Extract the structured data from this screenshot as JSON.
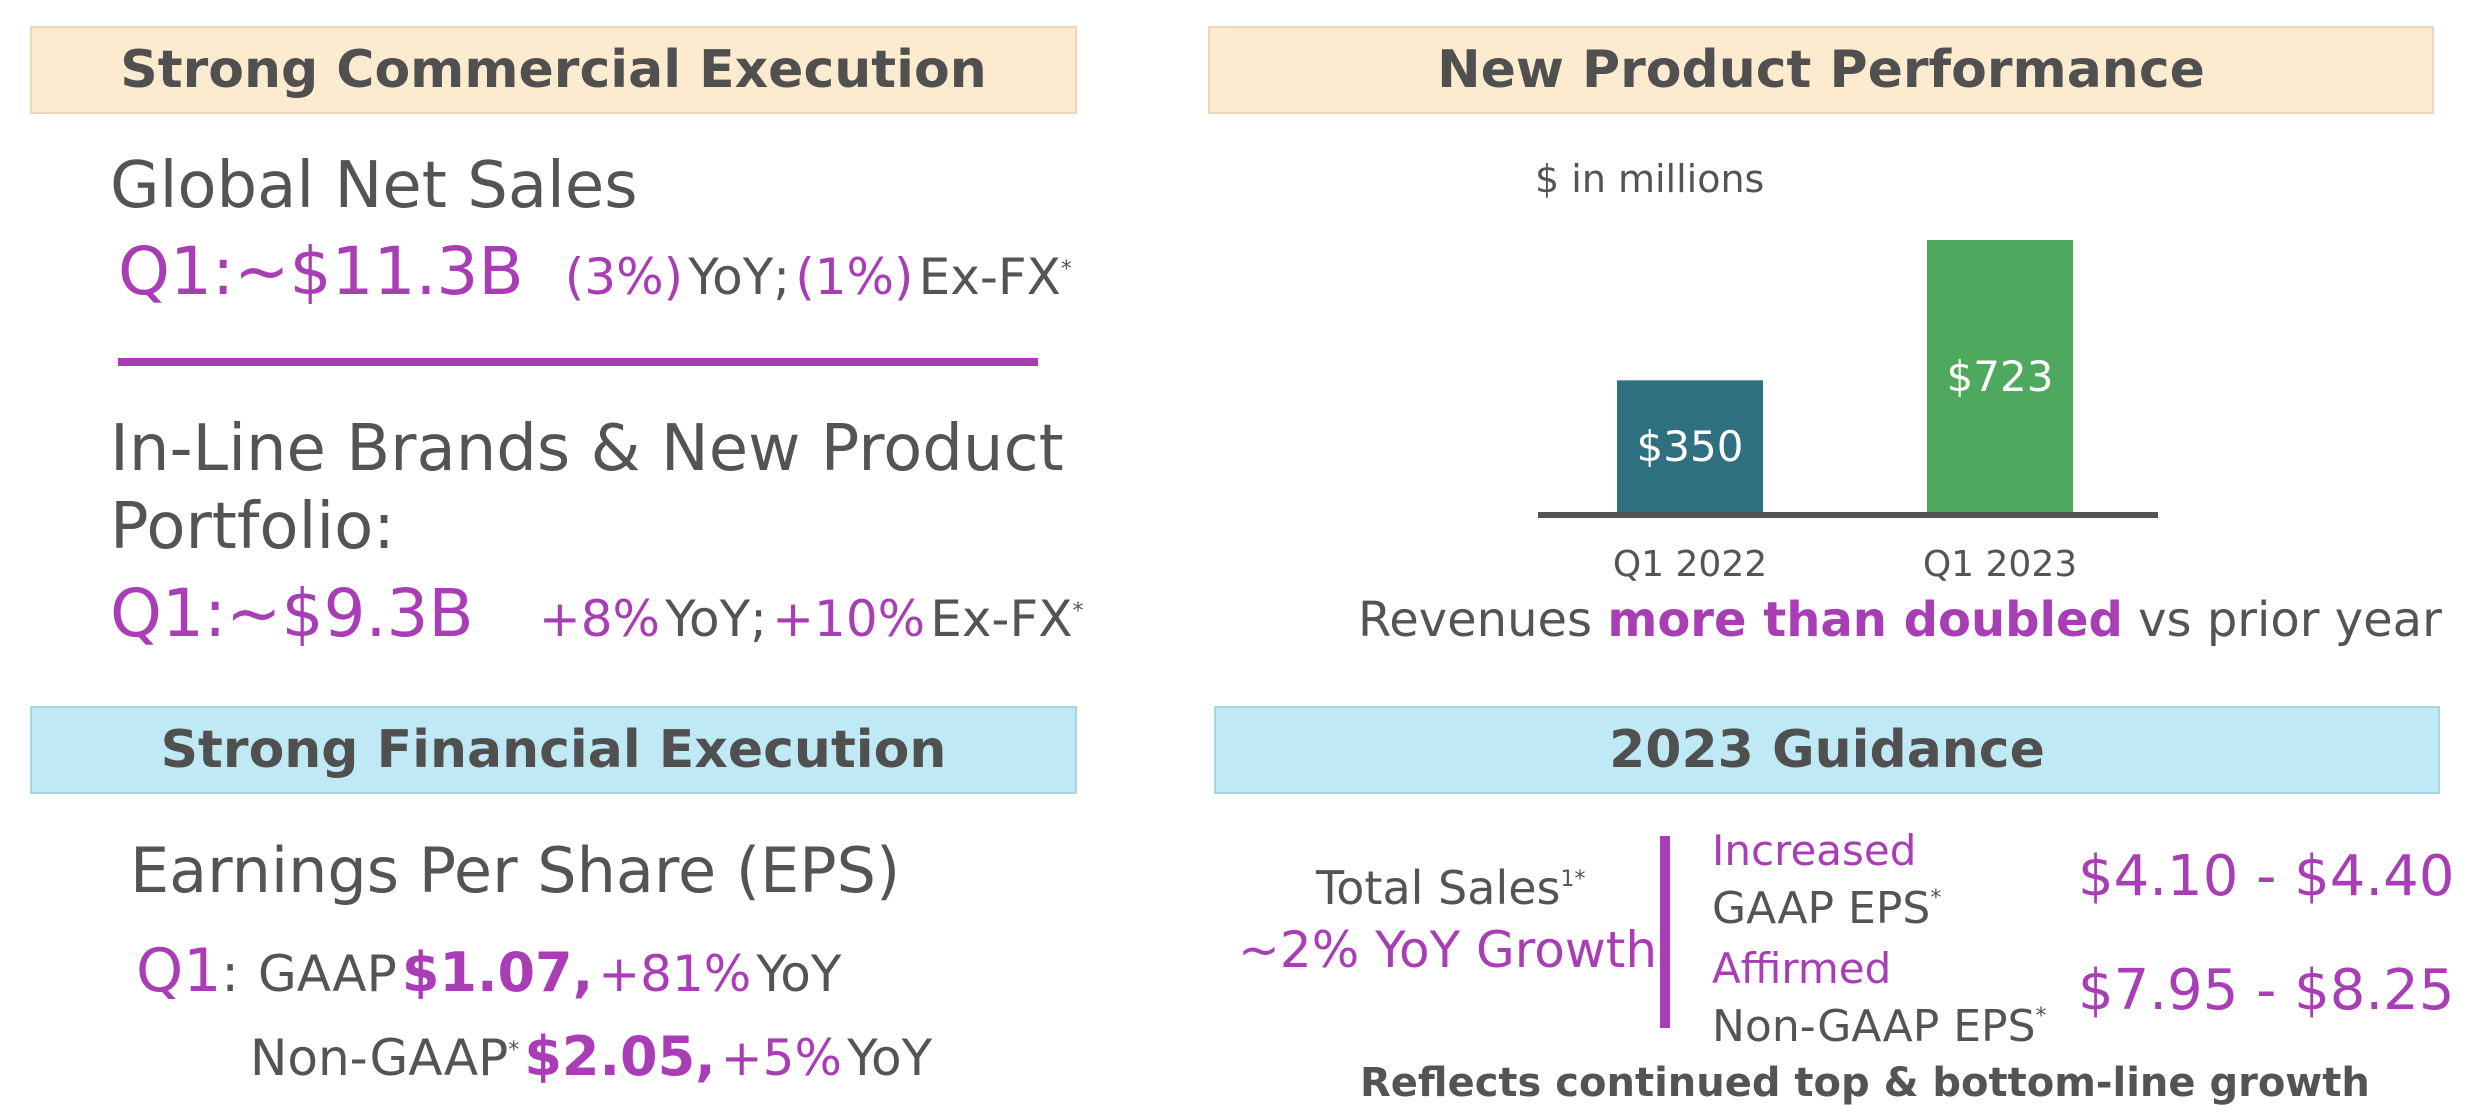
{
  "commercial": {
    "banner": "Strong Commercial Execution",
    "global_heading": "Global Net Sales",
    "global_q1": "Q1:~$11.3B",
    "global_yoy_pct": "(3%)",
    "global_yoy_label": "YoY;",
    "global_exfx_pct": "(1%)",
    "global_exfx_label": "Ex-FX",
    "global_asterisk": "*",
    "inline_heading_line1": "In-Line Brands & New Product",
    "inline_heading_line2": "Portfolio:",
    "inline_q1": "Q1:~$9.3B",
    "inline_yoy_pct": "+8%",
    "inline_yoy_label": "YoY;",
    "inline_exfx_pct": "+10%",
    "inline_exfx_label": "Ex-FX",
    "inline_asterisk": "*"
  },
  "financial": {
    "banner": "Strong Financial Execution",
    "heading": "Earnings Per Share (EPS)",
    "q1": "Q1",
    "colon": ":",
    "gaap_label": "GAAP",
    "gaap_value": "$1.07,",
    "gaap_yoy_pct": "+81%",
    "gaap_yoy_label": "YoY",
    "nongaap_label": "Non-GAAP",
    "nongaap_asterisk": "*",
    "nongaap_value": "$2.05,",
    "nongaap_yoy_pct": "+5%",
    "nongaap_yoy_label": "YoY"
  },
  "new_product": {
    "banner": "New Product Performance",
    "caption_pre": "Revenues",
    "caption_highlight": "more than doubled",
    "caption_post": "vs prior year"
  },
  "chart_data": {
    "type": "bar",
    "unit_label": "$ in millions",
    "categories": [
      "Q1 2022",
      "Q1 2023"
    ],
    "values": [
      350,
      723
    ],
    "data_labels": [
      "$350",
      "$723"
    ],
    "colors": [
      "#2f7080",
      "#4ea85d"
    ],
    "ylim": [
      0,
      723
    ]
  },
  "guidance": {
    "banner": "2023 Guidance",
    "total_sales_label": "Total Sales",
    "total_sales_marks": "1*",
    "total_sales_growth": "~2% YoY Growth",
    "increased_label": "Increased",
    "gaap_eps_label": "GAAP EPS",
    "gaap_eps_asterisk": "*",
    "gaap_eps_range": "$4.10 - $4.40",
    "affirmed_label": "Affirmed",
    "nongaap_eps_label": "Non-GAAP EPS",
    "nongaap_eps_asterisk": "*",
    "nongaap_eps_range": "$7.95 - $8.25",
    "footer": "Reflects continued top & bottom-line growth"
  },
  "colors": {
    "accent_purple": "#a83db6",
    "text_gray": "#545454",
    "banner_tan": "#fdebcf",
    "banner_blue": "#bfeaf5",
    "bar_2022": "#2f7080",
    "bar_2023": "#4ea85d"
  }
}
